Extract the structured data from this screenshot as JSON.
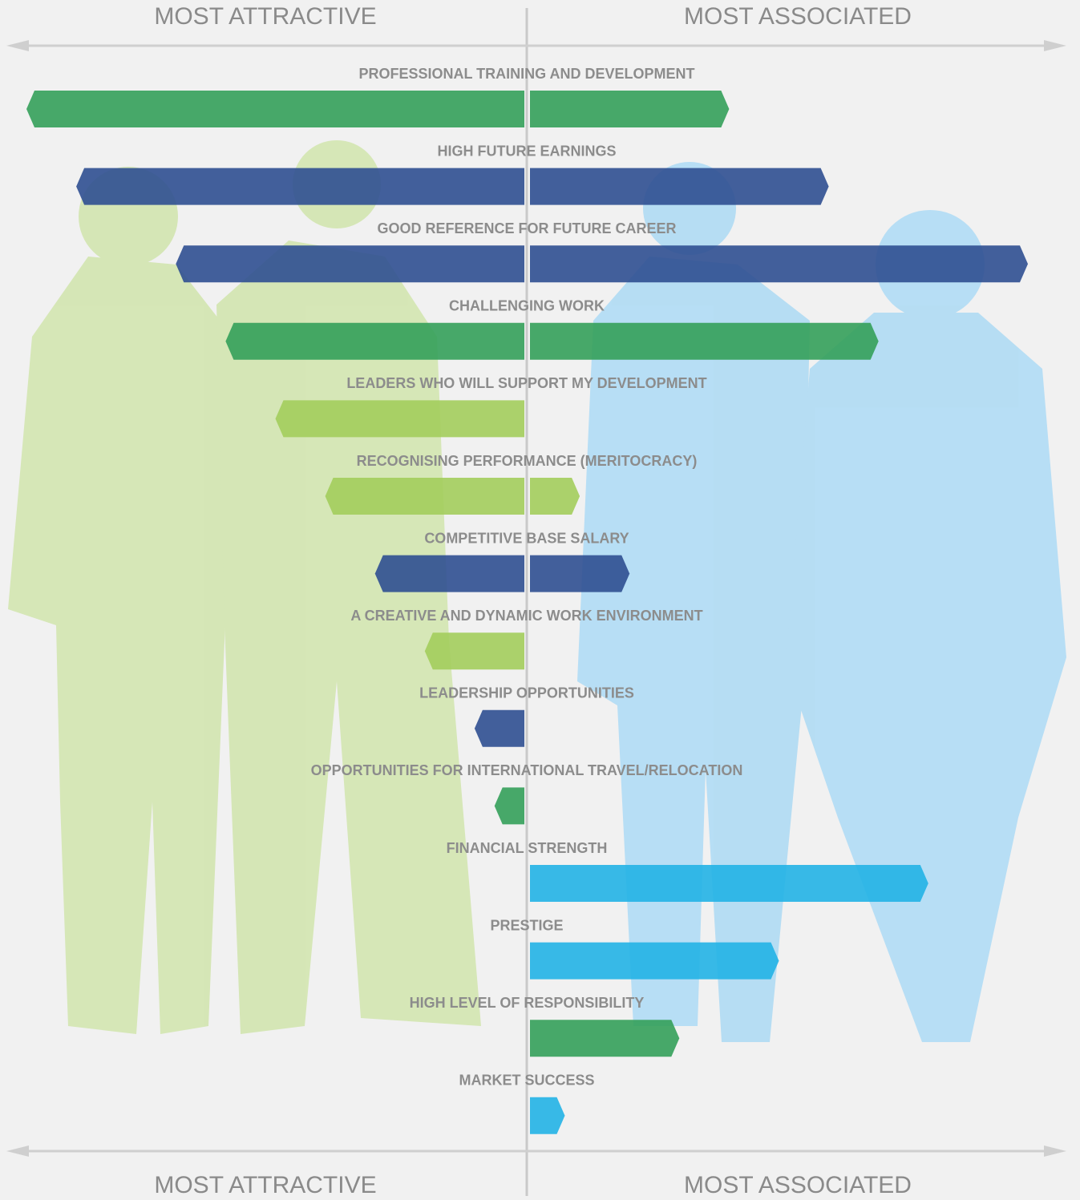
{
  "chart_data": {
    "type": "diverging-bar",
    "left_label": "MOST ATTRACTIVE",
    "right_label": "MOST ASSOCIATED",
    "categories": [
      "PROFESSIONAL TRAINING AND DEVELOPMENT",
      "HIGH FUTURE EARNINGS",
      "GOOD REFERENCE FOR FUTURE CAREER",
      "CHALLENGING WORK",
      "LEADERS WHO WILL SUPPORT MY DEVELOPMENT",
      "RECOGNISING PERFORMANCE (MERITOCRACY)",
      "COMPETITIVE BASE SALARY",
      "A CREATIVE AND DYNAMIC WORK ENVIRONMENT",
      "LEADERSHIP OPPORTUNITIES",
      "OPPORTUNITIES FOR INTERNATIONAL TRAVEL/RELOCATION",
      "FINANCIAL STRENGTH",
      "PRESTIGE",
      "HIGH LEVEL OF RESPONSIBILITY",
      "MARKET SUCCESS"
    ],
    "colors": [
      "#34a05a",
      "#2f4f91",
      "#2f4f91",
      "#34a05a",
      "#a3cd5c",
      "#a3cd5c",
      "#2f4f91",
      "#a3cd5c",
      "#2f4f91",
      "#34a05a",
      "#22b2e6",
      "#22b2e6",
      "#34a05a",
      "#22b2e6"
    ],
    "series": [
      {
        "values": [
          100,
          90,
          70,
          60,
          50,
          40,
          30,
          20,
          10,
          6,
          0,
          0,
          0,
          0
        ]
      },
      {
        "values": [
          40,
          60,
          100,
          70,
          0,
          10,
          20,
          0,
          0,
          0,
          80,
          50,
          30,
          7
        ]
      }
    ]
  }
}
